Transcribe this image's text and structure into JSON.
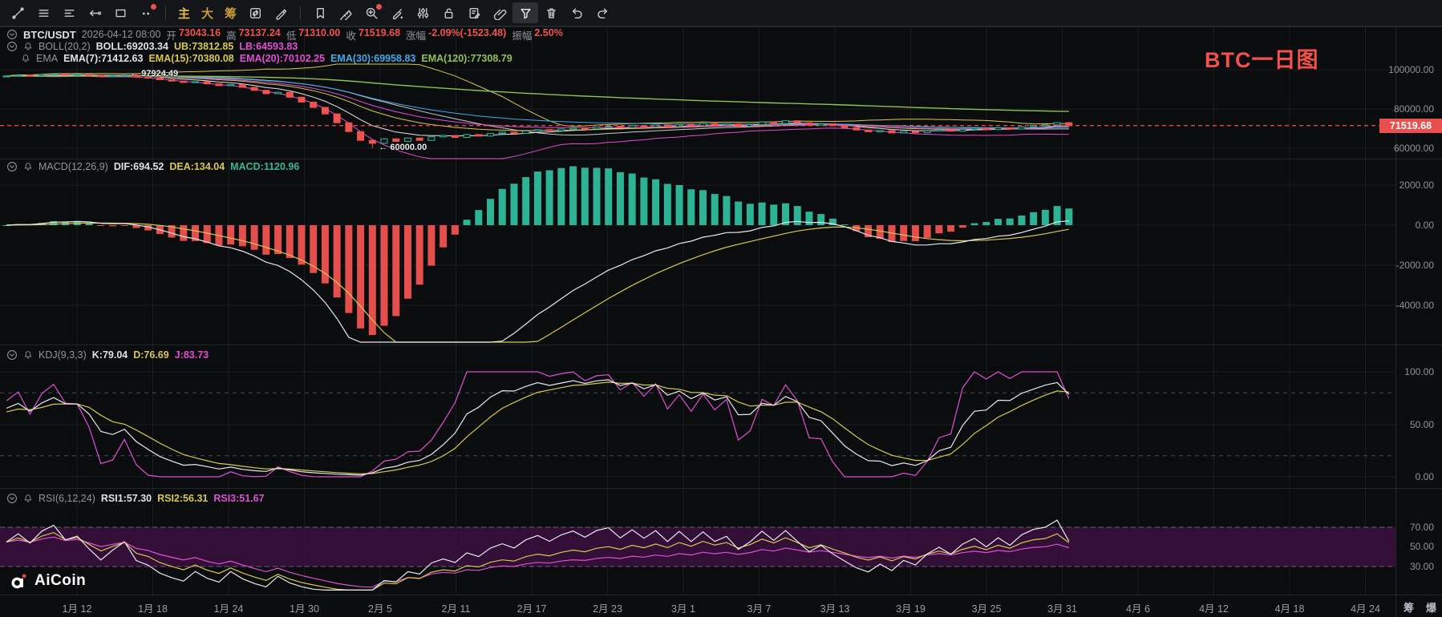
{
  "toolbar": {
    "items": [
      {
        "name": "trendline-tool-icon",
        "icon": "trendline"
      },
      {
        "name": "indicator-menu-icon",
        "icon": "menu"
      },
      {
        "name": "layout-menu-icon",
        "icon": "menu2"
      },
      {
        "name": "horizontal-line-tool-icon",
        "icon": "hline"
      },
      {
        "name": "rectangle-tool-icon",
        "icon": "rect"
      },
      {
        "name": "more-tools-icon",
        "icon": "dots",
        "badge": true
      },
      {
        "divider": true
      },
      {
        "name": "main-chart-tab",
        "label": "主",
        "active": true
      },
      {
        "name": "large-chart-tab",
        "label": "大"
      },
      {
        "name": "chip-chart-tab",
        "label": "筹"
      },
      {
        "name": "replay-icon",
        "icon": "replay"
      },
      {
        "name": "draw-pen-icon",
        "icon": "pen"
      },
      {
        "divider": true
      },
      {
        "name": "bookmark-icon",
        "icon": "bookmark"
      },
      {
        "name": "ruler-icon",
        "icon": "ruler"
      },
      {
        "name": "zoom-tool-icon",
        "icon": "zoom",
        "badge": true
      },
      {
        "name": "marker-pen-icon",
        "icon": "marker"
      },
      {
        "name": "sliders-icon",
        "icon": "sliders"
      },
      {
        "name": "lock-icon",
        "icon": "lock"
      },
      {
        "name": "note-edit-icon",
        "icon": "note"
      },
      {
        "name": "link-icon",
        "icon": "link"
      },
      {
        "name": "filter-funnel-icon",
        "icon": "funnel",
        "activeBox": true
      },
      {
        "name": "trash-icon",
        "icon": "trash"
      },
      {
        "name": "undo-icon",
        "icon": "undo"
      },
      {
        "name": "redo-icon",
        "icon": "redo"
      }
    ]
  },
  "legend": {
    "main": {
      "symbol": "BTC/USDT",
      "datetime": "2026-04-12 08:00",
      "open_label": "开",
      "open": "73043.16",
      "high_label": "高",
      "high": "73137.24",
      "low_label": "低",
      "low": "71310.00",
      "close_label": "收",
      "close": "71519.68",
      "change_label": "涨幅",
      "change": "-2.09%(-1523.48)",
      "amp_label": "振幅",
      "amp": "2.50%"
    },
    "boll": {
      "name": "BOLL(20,2)",
      "mid": "BOLL:69203.34",
      "ub": "UB:73812.85",
      "lb": "LB:64593.83"
    },
    "ema": {
      "name": "EMA",
      "e7": "EMA(7):71412.63",
      "e15": "EMA(15):70380.08",
      "e20": "EMA(20):70102.25",
      "e30": "EMA(30):69958.83",
      "e120": "EMA(120):77308.79"
    },
    "macd": {
      "name": "MACD(12,26,9)",
      "dif": "DIF:694.52",
      "dea": "DEA:134.04",
      "macd": "MACD:1120.96"
    },
    "kdj": {
      "name": "KDJ(9,3,3)",
      "k": "K:79.04",
      "d": "D:76.69",
      "j": "J:83.73"
    },
    "rsi": {
      "name": "RSI(6,12,24)",
      "r1": "RSI1:57.30",
      "r2": "RSI2:56.31",
      "r3": "RSI3:51.67"
    }
  },
  "price_axis": {
    "main": [
      "100000.00",
      "80000.00",
      "60000.00"
    ],
    "macd": [
      "2000.00",
      "0.00",
      "-2000.00",
      "-4000.00"
    ],
    "kdj": [
      "100.00",
      "50.00",
      "0.00"
    ],
    "rsi": [
      "70.00",
      "50.00",
      "30.00"
    ],
    "last_price": "71519.68"
  },
  "annotations": {
    "peak_text": "← 97924.49",
    "trough_text": "← 60000.00",
    "title": "BTC一日图",
    "watermark": "AiCoin"
  },
  "time_axis_extra": [
    "筹",
    "爆"
  ],
  "colors": {
    "up": "#2fbc9e",
    "down": "#ef5350",
    "yellow": "#d8c84e",
    "magenta": "#e04fd4",
    "cyan": "#41a8e8",
    "green": "#8ec25a",
    "white_line": "#e6e9ee",
    "badge": "#e9504d",
    "title_red": "#f2514c",
    "grid": "#1b1d22",
    "panel_border": "#23262b",
    "rsi_band": "#3b1040",
    "gold": "#c89b3c"
  },
  "chart_data": {
    "type": "candlestick",
    "symbol": "BTC/USDT",
    "interval": "daily",
    "x_ticks": [
      "1月 12",
      "1月 18",
      "1月 24",
      "1月 30",
      "2月 5",
      "2月 11",
      "2月 17",
      "2月 23",
      "3月 1",
      "3月 7",
      "3月 13",
      "3月 19",
      "3月 25",
      "3月 31",
      "4月 6",
      "4月 12",
      "4月 18",
      "4月 24"
    ],
    "candles": {
      "first_open": 96500,
      "closes": [
        96800,
        97200,
        96900,
        97500,
        97900,
        97400,
        97600,
        97100,
        96500,
        96900,
        97300,
        96200,
        95800,
        94900,
        94200,
        93500,
        93900,
        92800,
        91900,
        92400,
        91000,
        89500,
        87800,
        88500,
        86000,
        83500,
        80800,
        77500,
        73000,
        68500,
        64000,
        62500,
        64800,
        63500,
        65200,
        64000,
        65800,
        66500,
        65500,
        67000,
        66200,
        67500,
        68200,
        67600,
        68800,
        69500,
        68900,
        69800,
        70400,
        69900,
        70800,
        71200,
        70500,
        71500,
        70900,
        71800,
        71000,
        72200,
        71400,
        72600,
        71800,
        72400,
        71200,
        72000,
        73400,
        72600,
        74000,
        73000,
        71800,
        72500,
        71500,
        70500,
        69300,
        68400,
        69000,
        67800,
        68600,
        67900,
        68800,
        69400,
        68700,
        69600,
        70200,
        69500,
        70400,
        69800,
        70900,
        71600,
        71900,
        73043.16,
        71519.68
      ],
      "high_overrides": {
        "10": 97924.49,
        "90": 73137.24
      },
      "low_overrides": {
        "31": 60000.0,
        "90": 71310.0
      }
    },
    "overlays": {
      "boll_period": 20,
      "boll_mult": 2,
      "ema_periods": [
        7,
        15,
        20,
        30,
        120
      ]
    },
    "panels": {
      "main": {
        "axis_values": [
          100000,
          80000,
          60000
        ]
      },
      "macd": {
        "params": [
          12,
          26,
          9
        ],
        "axis_values": [
          2000,
          0,
          -2000,
          -4000
        ]
      },
      "kdj": {
        "params": [
          9,
          3,
          3
        ],
        "axis_values": [
          100,
          50,
          0
        ],
        "dashed_levels": [
          80,
          20
        ]
      },
      "rsi": {
        "params": [
          6,
          12,
          24
        ],
        "axis_values": [
          70,
          50,
          30
        ],
        "band": [
          30,
          70
        ]
      }
    },
    "last_price": 71519.68,
    "peak_annotation": {
      "index": 10,
      "price": 97924.49
    },
    "trough_annotation": {
      "index": 31,
      "price": 60000
    }
  }
}
